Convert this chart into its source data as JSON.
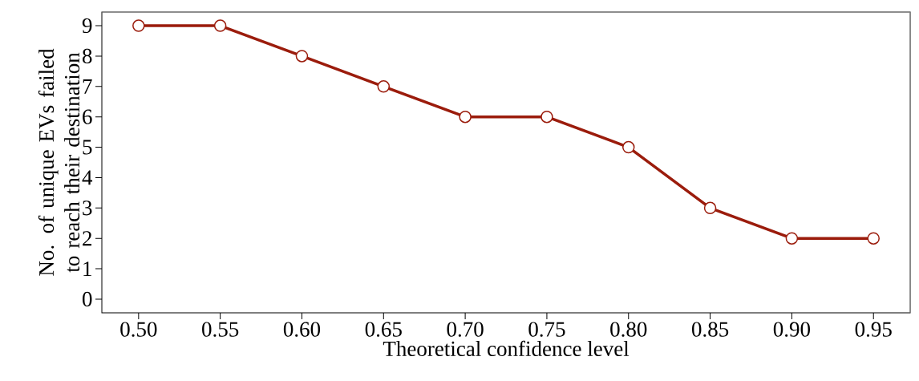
{
  "chart_data": {
    "type": "line",
    "xlabel": "Theoretical confidence level",
    "ylabel": "No. of unique EVs failed to reach their destination",
    "x": [
      0.5,
      0.55,
      0.6,
      0.65,
      0.7,
      0.75,
      0.8,
      0.85,
      0.9,
      0.95
    ],
    "values": [
      9,
      9,
      8,
      7,
      6,
      6,
      5,
      3,
      2,
      2
    ],
    "color": "#9b1c0c",
    "marker": "circle",
    "xlim": [
      0.4775,
      0.9725
    ],
    "ylim": [
      -0.45,
      9.45
    ],
    "xticks": [
      {
        "value": 0.5,
        "label": "0.50"
      },
      0.55,
      {
        "value": 0.6,
        "label": "0.60"
      },
      0.65,
      {
        "value": 0.7,
        "label": "0.70"
      },
      0.75,
      {
        "value": 0.8,
        "label": "0.80"
      },
      0.85,
      {
        "value": 0.9,
        "label": "0.90"
      },
      0.95
    ],
    "yticks": [
      0,
      1,
      2,
      3,
      4,
      5,
      6,
      7,
      8,
      9
    ]
  }
}
